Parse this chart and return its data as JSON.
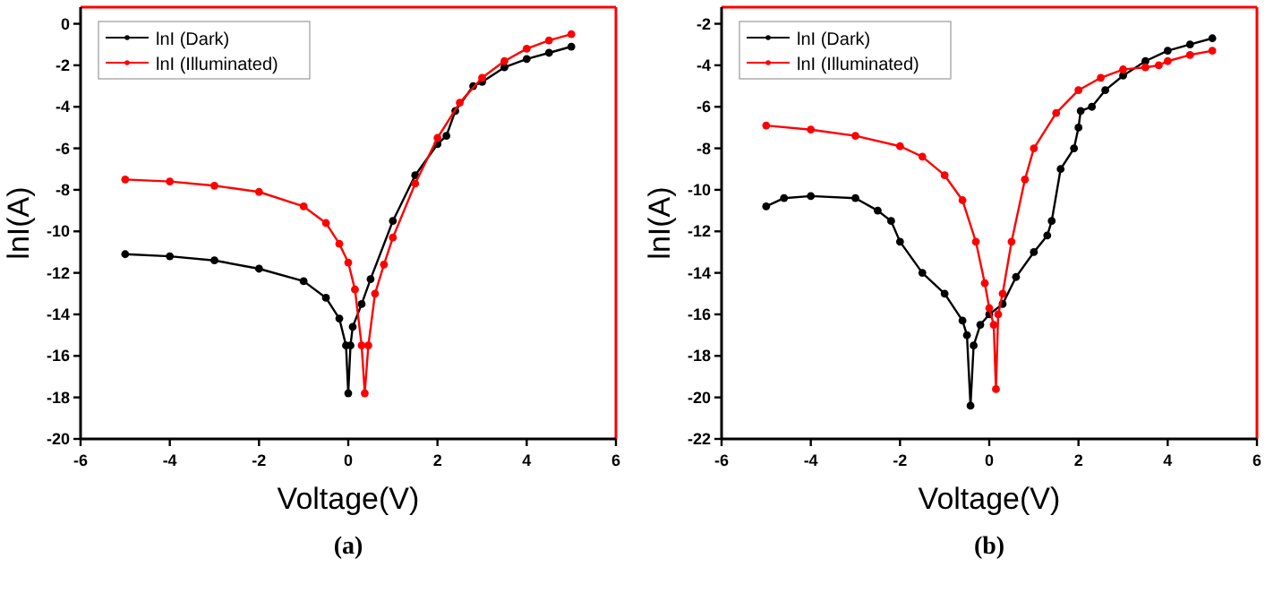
{
  "chart_data": [
    {
      "type": "line",
      "xlabel": "Voltage(V)",
      "ylabel": "lnI(A)",
      "annotations": [
        "(a)"
      ],
      "xlim": [
        -6,
        6
      ],
      "ylim": [
        -20,
        0.8
      ],
      "xticks": [
        -6,
        -4,
        -2,
        0,
        2,
        4,
        6
      ],
      "yticks": [
        -20,
        -18,
        -16,
        -14,
        -12,
        -10,
        -8,
        -6,
        -4,
        -2,
        0
      ],
      "legend": "top left",
      "marker": "circle",
      "line_style": "solid",
      "grid": false,
      "series": [
        {
          "name": "lnI (Dark)",
          "color": "#000000",
          "x": [
            -5,
            -4,
            -3,
            -2,
            -1,
            -0.5,
            -0.2,
            -0.05,
            0,
            0.05,
            0.1,
            0.3,
            0.5,
            1,
            1.5,
            2,
            2.2,
            2.4,
            2.8,
            3,
            3.5,
            4,
            4.5,
            5
          ],
          "values": [
            -11.1,
            -11.2,
            -11.4,
            -11.8,
            -12.4,
            -13.2,
            -14.2,
            -15.5,
            -17.8,
            -15.5,
            -14.6,
            -13.5,
            -12.3,
            -9.5,
            -7.3,
            -5.8,
            -5.4,
            -4.2,
            -3,
            -2.8,
            -2.1,
            -1.7,
            -1.4,
            -1.1
          ]
        },
        {
          "name": "lnI (Illuminated)",
          "color": "#ff0000",
          "x": [
            -5,
            -4,
            -3,
            -2,
            -1,
            -0.5,
            -0.2,
            0,
            0.15,
            0.3,
            0.37,
            0.45,
            0.6,
            0.8,
            1,
            1.5,
            2,
            2.5,
            3,
            3.5,
            4,
            4.5,
            5
          ],
          "values": [
            -7.5,
            -7.6,
            -7.8,
            -8.1,
            -8.8,
            -9.6,
            -10.6,
            -11.5,
            -12.8,
            -15.5,
            -17.8,
            -15.5,
            -13,
            -11.6,
            -10.3,
            -7.7,
            -5.5,
            -3.8,
            -2.6,
            -1.8,
            -1.2,
            -0.8,
            -0.5
          ]
        }
      ]
    },
    {
      "type": "line",
      "xlabel": "Voltage(V)",
      "ylabel": "lnI(A)",
      "annotations": [
        "(b)"
      ],
      "xlim": [
        -6,
        6
      ],
      "ylim": [
        -22,
        -1.2
      ],
      "xticks": [
        -6,
        -4,
        -2,
        0,
        2,
        4,
        6
      ],
      "yticks": [
        -22,
        -20,
        -18,
        -16,
        -14,
        -12,
        -10,
        -8,
        -6,
        -4,
        -2
      ],
      "legend": "top left",
      "marker": "circle",
      "line_style": "solid",
      "grid": false,
      "series": [
        {
          "name": "lnI (Dark)",
          "color": "#000000",
          "x": [
            -5,
            -4.6,
            -4,
            -3,
            -2.5,
            -2.2,
            -2,
            -1.5,
            -1,
            -0.6,
            -0.5,
            -0.42,
            -0.35,
            -0.2,
            0,
            0.3,
            0.6,
            1,
            1.3,
            1.4,
            1.6,
            1.9,
            2,
            2.05,
            2.3,
            2.6,
            3,
            3.5,
            4,
            4.5,
            5
          ],
          "values": [
            -10.8,
            -10.4,
            -10.3,
            -10.4,
            -11,
            -11.5,
            -12.5,
            -14,
            -15,
            -16.3,
            -17,
            -20.4,
            -17.5,
            -16.5,
            -16,
            -15.5,
            -14.2,
            -13,
            -12.2,
            -11.5,
            -9,
            -8,
            -7,
            -6.2,
            -6,
            -5.2,
            -4.5,
            -3.8,
            -3.3,
            -3,
            -2.7
          ]
        },
        {
          "name": "lnI (Illuminated)",
          "color": "#ff0000",
          "x": [
            -5,
            -4,
            -3,
            -2,
            -1.5,
            -1,
            -0.6,
            -0.3,
            -0.1,
            0,
            0.1,
            0.15,
            0.2,
            0.3,
            0.5,
            0.8,
            1,
            1.5,
            2,
            2.5,
            3,
            3.5,
            3.8,
            4,
            4.5,
            5
          ],
          "values": [
            -6.9,
            -7.1,
            -7.4,
            -7.9,
            -8.4,
            -9.3,
            -10.5,
            -12.5,
            -14.5,
            -15.7,
            -16.5,
            -19.6,
            -16,
            -15,
            -12.5,
            -9.5,
            -8,
            -6.3,
            -5.2,
            -4.6,
            -4.2,
            -4.1,
            -4,
            -3.8,
            -3.5,
            -3.3
          ]
        }
      ]
    }
  ]
}
